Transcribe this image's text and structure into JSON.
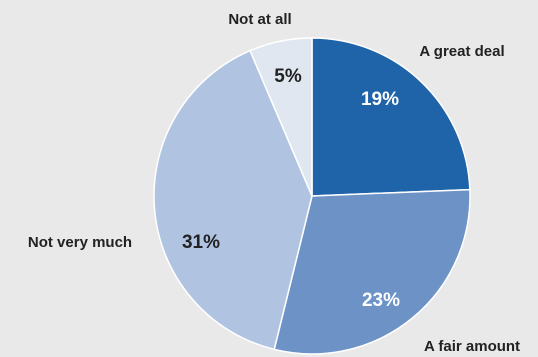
{
  "chart_data": {
    "type": "pie",
    "slices": [
      {
        "label": "A great deal",
        "value": 19,
        "value_label": "19%",
        "color": "#1f63a8",
        "text_color": "#ffffff"
      },
      {
        "label": "A fair amount",
        "value": 23,
        "value_label": "23%",
        "color": "#6d93c6",
        "text_color": "#ffffff"
      },
      {
        "label": "Not very much",
        "value": 31,
        "value_label": "31%",
        "color": "#b0c4e2",
        "text_color": "#222222"
      },
      {
        "label": "Not at all",
        "value": 5,
        "value_label": "5%",
        "color": "#e1e7f1",
        "text_color": "#222222"
      }
    ],
    "start_angle": "12 o'clock",
    "direction": "clockwise",
    "background_color": "#e9e9ea",
    "slice_border_color": "#ffffff"
  }
}
